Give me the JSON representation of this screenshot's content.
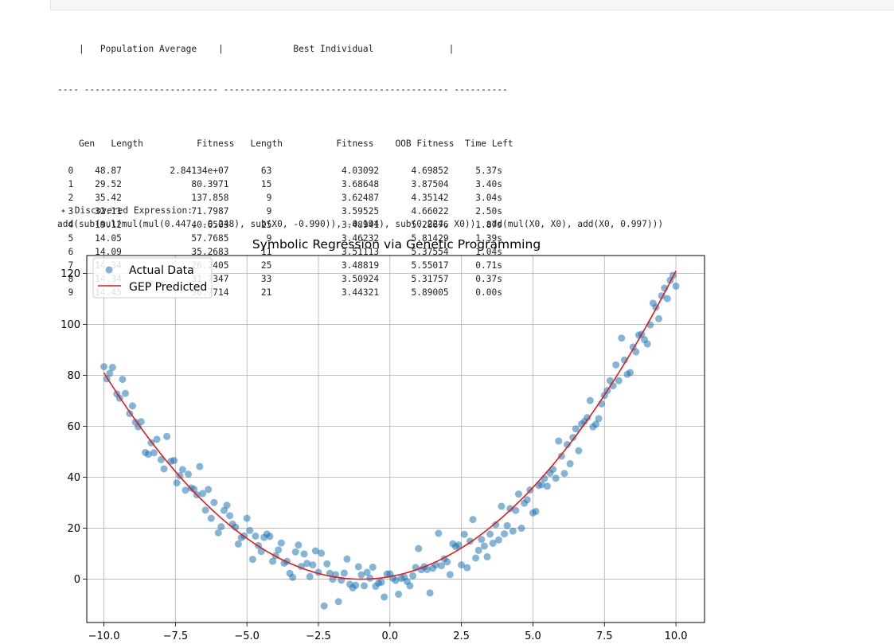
{
  "table": {
    "header1": "    |   Population Average    |             Best Individual              |",
    "divider": "---- ------------------------- ------------------------------------------ ----------",
    "columns": [
      "Gen",
      "Length",
      "Fitness",
      "Length",
      "Fitness",
      "OOB Fitness",
      "Time Left"
    ],
    "rows": [
      [
        "0",
        "48.87",
        "2.84134e+07",
        "63",
        "4.03092",
        "4.69852",
        "5.37s"
      ],
      [
        "1",
        "29.52",
        "80.3971",
        "15",
        "3.68648",
        "3.87504",
        "3.40s"
      ],
      [
        "2",
        "35.42",
        "137.858",
        "9",
        "3.62487",
        "4.35142",
        "3.04s"
      ],
      [
        "3",
        "32.11",
        "71.7987",
        "9",
        "3.59525",
        "4.66022",
        "2.50s"
      ],
      [
        "4",
        "19.12",
        "40.6503",
        "25",
        "3.48941",
        "5.28676",
        "1.87s"
      ],
      [
        "5",
        "14.05",
        "57.7685",
        "9",
        "3.46232",
        "5.81429",
        "1.39s"
      ],
      [
        "6",
        "14.09",
        "35.2683",
        "11",
        "3.51113",
        "5.37554",
        "1.04s"
      ],
      [
        "7",
        "14.34",
        "26.2405",
        "25",
        "3.48819",
        "5.55017",
        "0.71s"
      ],
      [
        "8",
        "14.34",
        "31.7347",
        "33",
        "3.50924",
        "5.31757",
        "0.37s"
      ],
      [
        "9",
        "14.45",
        "56.7714",
        "21",
        "3.44321",
        "5.89005",
        "0.00s"
      ]
    ]
  },
  "discovered": {
    "icon": "dna-icon",
    "label": "Discovered Expression:",
    "expression": "add(sub(mul(mul(mul(0.447, -0.248), sub(X0, -0.990)), -0.194), sub(0.224, X0)), add(mul(X0, X0), add(X0, 0.997)))"
  },
  "chart_data": {
    "type": "scatter",
    "title": "Symbolic Regression via Genetic Programming",
    "xlabel": "",
    "ylabel": "",
    "xlim": [
      -10.6,
      11.0
    ],
    "ylim": [
      -17,
      127
    ],
    "xticks": [
      -10.0,
      -7.5,
      -5.0,
      -2.5,
      0.0,
      2.5,
      5.0,
      7.5,
      10.0
    ],
    "xtick_labels": [
      "−10.0",
      "−7.5",
      "−5.0",
      "−2.5",
      "0.0",
      "2.5",
      "5.0",
      "7.5",
      "10.0"
    ],
    "yticks": [
      0,
      20,
      40,
      60,
      80,
      100,
      120
    ],
    "ytick_labels": [
      "0",
      "20",
      "40",
      "60",
      "80",
      "100",
      "120"
    ],
    "grid": true,
    "legend_position": "top-left",
    "series": [
      {
        "name": "Actual Data",
        "kind": "scatter",
        "color": "#1f77b4",
        "points": [
          [
            -10.0,
            83.4
          ],
          [
            -9.9,
            78.6
          ],
          [
            -9.8,
            80.8
          ],
          [
            -9.7,
            83.1
          ],
          [
            -9.55,
            72.7
          ],
          [
            -9.45,
            71.0
          ],
          [
            -9.35,
            78.4
          ],
          [
            -9.25,
            72.9
          ],
          [
            -9.1,
            65.0
          ],
          [
            -9.0,
            68.0
          ],
          [
            -8.9,
            61.6
          ],
          [
            -8.8,
            59.8
          ],
          [
            -8.7,
            61.8
          ],
          [
            -8.55,
            49.7
          ],
          [
            -8.45,
            49.0
          ],
          [
            -8.35,
            53.5
          ],
          [
            -8.25,
            49.6
          ],
          [
            -8.15,
            54.9
          ],
          [
            -8.0,
            46.9
          ],
          [
            -7.9,
            43.3
          ],
          [
            -7.8,
            56.0
          ],
          [
            -7.65,
            46.3
          ],
          [
            -7.55,
            46.6
          ],
          [
            -7.45,
            37.8
          ],
          [
            -7.35,
            40.6
          ],
          [
            -7.25,
            43.0
          ],
          [
            -7.15,
            34.9
          ],
          [
            -7.05,
            41.2
          ],
          [
            -6.95,
            35.8
          ],
          [
            -6.85,
            35.3
          ],
          [
            -6.75,
            33.1
          ],
          [
            -6.65,
            44.2
          ],
          [
            -6.55,
            33.6
          ],
          [
            -6.45,
            27.1
          ],
          [
            -6.35,
            35.2
          ],
          [
            -6.25,
            23.9
          ],
          [
            -6.15,
            30.1
          ],
          [
            -6.0,
            18.2
          ],
          [
            -5.9,
            20.6
          ],
          [
            -5.8,
            27.0
          ],
          [
            -5.7,
            29.0
          ],
          [
            -5.6,
            24.9
          ],
          [
            -5.5,
            21.6
          ],
          [
            -5.4,
            20.4
          ],
          [
            -5.3,
            13.8
          ],
          [
            -5.2,
            16.3
          ],
          [
            -5.1,
            17.0
          ],
          [
            -5.0,
            23.9
          ],
          [
            -4.9,
            19.1
          ],
          [
            -4.8,
            7.8
          ],
          [
            -4.7,
            16.9
          ],
          [
            -4.6,
            13.2
          ],
          [
            -4.5,
            10.9
          ],
          [
            -4.4,
            16.4
          ],
          [
            -4.3,
            17.7
          ],
          [
            -4.2,
            16.8
          ],
          [
            -4.1,
            7.0
          ],
          [
            -4.0,
            9.2
          ],
          [
            -3.9,
            11.5
          ],
          [
            -3.8,
            14.2
          ],
          [
            -3.7,
            6.3
          ],
          [
            -3.6,
            7.0
          ],
          [
            -3.5,
            2.3
          ],
          [
            -3.4,
            0.7
          ],
          [
            -3.3,
            10.7
          ],
          [
            -3.2,
            13.4
          ],
          [
            -3.1,
            5.0
          ],
          [
            -3.0,
            9.9
          ],
          [
            -2.9,
            6.2
          ],
          [
            -2.8,
            1.0
          ],
          [
            -2.7,
            5.6
          ],
          [
            -2.6,
            11.1
          ],
          [
            -2.5,
            2.7
          ],
          [
            -2.4,
            10.2
          ],
          [
            -2.3,
            -10.5
          ],
          [
            -2.2,
            6.0
          ],
          [
            -2.1,
            2.3
          ],
          [
            -2.0,
            0.0
          ],
          [
            -1.9,
            1.8
          ],
          [
            -1.8,
            -8.8
          ],
          [
            -1.7,
            -0.4
          ],
          [
            -1.6,
            2.4
          ],
          [
            -1.5,
            7.9
          ],
          [
            -1.4,
            -2.0
          ],
          [
            -1.3,
            -3.4
          ],
          [
            -1.2,
            -2.4
          ],
          [
            -1.1,
            4.9
          ],
          [
            -1.0,
            1.7
          ],
          [
            -0.9,
            -2.6
          ],
          [
            -0.8,
            2.7
          ],
          [
            -0.7,
            0.4
          ],
          [
            -0.6,
            4.7
          ],
          [
            -0.5,
            -2.8
          ],
          [
            -0.4,
            -1.5
          ],
          [
            -0.3,
            -1.2
          ],
          [
            -0.2,
            -7.0
          ],
          [
            -0.1,
            2.0
          ],
          [
            0.0,
            2.1
          ],
          [
            0.1,
            0.4
          ],
          [
            0.2,
            -0.5
          ],
          [
            0.3,
            -5.9
          ],
          [
            0.4,
            0.3
          ],
          [
            0.5,
            0.8
          ],
          [
            0.6,
            -0.9
          ],
          [
            0.7,
            -2.6
          ],
          [
            0.8,
            1.3
          ],
          [
            0.9,
            4.6
          ],
          [
            1.0,
            12.0
          ],
          [
            1.1,
            3.7
          ],
          [
            1.2,
            4.9
          ],
          [
            1.3,
            3.8
          ],
          [
            1.4,
            -5.4
          ],
          [
            1.5,
            4.3
          ],
          [
            1.6,
            5.6
          ],
          [
            1.7,
            18.0
          ],
          [
            1.8,
            5.3
          ],
          [
            1.9,
            8.0
          ],
          [
            2.0,
            6.8
          ],
          [
            2.1,
            1.8
          ],
          [
            2.2,
            13.9
          ],
          [
            2.3,
            12.8
          ],
          [
            2.4,
            13.4
          ],
          [
            2.5,
            5.6
          ],
          [
            2.6,
            17.6
          ],
          [
            2.7,
            4.5
          ],
          [
            2.8,
            14.9
          ],
          [
            2.9,
            23.4
          ],
          [
            3.0,
            8.3
          ],
          [
            3.1,
            11.3
          ],
          [
            3.2,
            15.6
          ],
          [
            3.3,
            13.0
          ],
          [
            3.4,
            8.8
          ],
          [
            3.5,
            17.7
          ],
          [
            3.6,
            14.1
          ],
          [
            3.7,
            21.4
          ],
          [
            3.8,
            15.4
          ],
          [
            3.9,
            28.6
          ],
          [
            4.0,
            17.8
          ],
          [
            4.1,
            21.0
          ],
          [
            4.2,
            27.7
          ],
          [
            4.3,
            18.9
          ],
          [
            4.4,
            27.0
          ],
          [
            4.5,
            33.4
          ],
          [
            4.6,
            20.0
          ],
          [
            4.7,
            29.8
          ],
          [
            4.8,
            31.2
          ],
          [
            4.9,
            35.0
          ],
          [
            5.0,
            26.0
          ],
          [
            5.1,
            26.6
          ],
          [
            5.2,
            36.8
          ],
          [
            5.3,
            37.1
          ],
          [
            5.4,
            39.5
          ],
          [
            5.5,
            36.5
          ],
          [
            5.6,
            41.6
          ],
          [
            5.7,
            43.1
          ],
          [
            5.8,
            39.6
          ],
          [
            5.9,
            54.2
          ],
          [
            6.0,
            48.3
          ],
          [
            6.1,
            41.5
          ],
          [
            6.2,
            52.8
          ],
          [
            6.3,
            45.3
          ],
          [
            6.4,
            55.6
          ],
          [
            6.5,
            59.0
          ],
          [
            6.6,
            50.4
          ],
          [
            6.7,
            60.9
          ],
          [
            6.8,
            61.9
          ],
          [
            6.9,
            63.4
          ],
          [
            7.0,
            70.1
          ],
          [
            7.1,
            59.8
          ],
          [
            7.2,
            60.8
          ],
          [
            7.3,
            63.0
          ],
          [
            7.4,
            68.8
          ],
          [
            7.5,
            72.1
          ],
          [
            7.6,
            74.0
          ],
          [
            7.7,
            77.9
          ],
          [
            7.8,
            75.9
          ],
          [
            7.9,
            84.1
          ],
          [
            8.0,
            77.9
          ],
          [
            8.1,
            94.6
          ],
          [
            8.2,
            86.0
          ],
          [
            8.3,
            80.4
          ],
          [
            8.4,
            81.1
          ],
          [
            8.5,
            91.1
          ],
          [
            8.6,
            89.2
          ],
          [
            8.7,
            95.8
          ],
          [
            8.8,
            96.1
          ],
          [
            8.9,
            94.0
          ],
          [
            9.0,
            92.3
          ],
          [
            9.1,
            99.8
          ],
          [
            9.2,
            108.3
          ],
          [
            9.3,
            106.7
          ],
          [
            9.4,
            102.2
          ],
          [
            9.5,
            111.2
          ],
          [
            9.6,
            114.2
          ],
          [
            9.7,
            110.1
          ],
          [
            9.8,
            117.3
          ],
          [
            9.9,
            119.2
          ],
          [
            10.0,
            115.0
          ]
        ]
      },
      {
        "name": "GEP Predicted",
        "kind": "line",
        "color": "#e41a1c",
        "formula": "x^2 + 2x + 1",
        "x_range": [
          -10.0,
          10.0
        ]
      }
    ]
  }
}
